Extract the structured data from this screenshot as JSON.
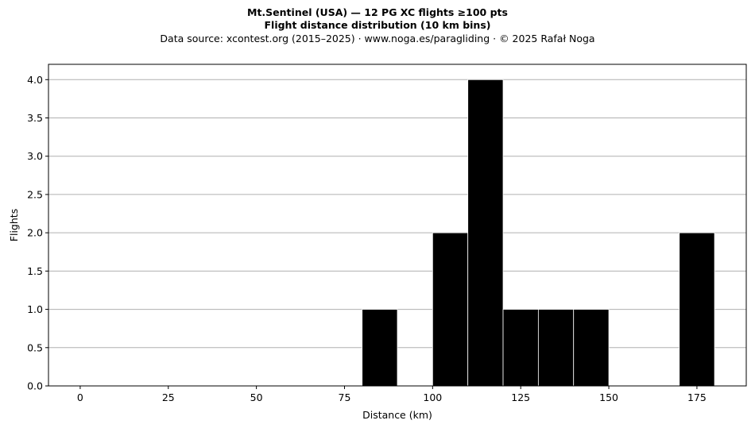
{
  "chart_data": {
    "type": "bar",
    "title": "Mt.Sentinel (USA)  —  12 PG XC flights ≥100 pts",
    "subtitle": "Flight distance distribution (10 km bins)",
    "source": "Data source: xcontest.org (2015–2025)  ·  www.noga.es/paragliding  ·  © 2025 Rafał Noga",
    "xlabel": "Distance (km)",
    "ylabel": "Flights",
    "bin_width": 10,
    "bins": [
      {
        "start": 80,
        "end": 90,
        "value": 1
      },
      {
        "start": 100,
        "end": 110,
        "value": 2
      },
      {
        "start": 110,
        "end": 120,
        "value": 4
      },
      {
        "start": 120,
        "end": 130,
        "value": 1
      },
      {
        "start": 130,
        "end": 140,
        "value": 1
      },
      {
        "start": 140,
        "end": 150,
        "value": 1
      },
      {
        "start": 170,
        "end": 180,
        "value": 2
      }
    ],
    "xlim": [
      -9,
      189
    ],
    "ylim": [
      0,
      4.2
    ],
    "xticks": [
      "0",
      "25",
      "50",
      "75",
      "100",
      "125",
      "150",
      "175"
    ],
    "yticks": [
      "0.0",
      "0.5",
      "1.0",
      "1.5",
      "2.0",
      "2.5",
      "3.0",
      "3.5",
      "4.0"
    ],
    "grid": "horizontal",
    "bar_color": "#000000",
    "bar_edge_color": "#ffffff",
    "grid_color": "#b0b0b0"
  }
}
